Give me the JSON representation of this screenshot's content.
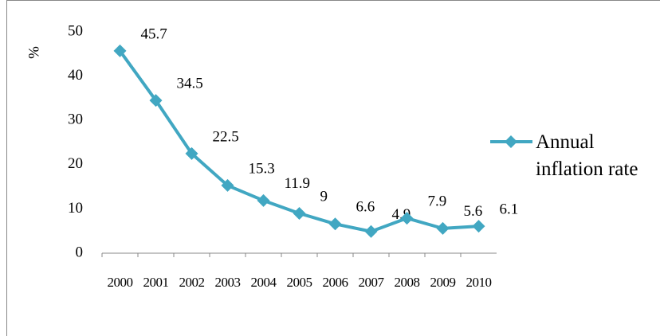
{
  "chart_data": {
    "type": "line",
    "y_label": "%",
    "categories": [
      "2000",
      "2001",
      "2002",
      "2003",
      "2004",
      "2005",
      "2006",
      "2007",
      "2008",
      "2009",
      "2010"
    ],
    "series": [
      {
        "name": "Annual inflation rate",
        "color": "#41a7c2",
        "values": [
          45.7,
          34.5,
          22.5,
          15.3,
          11.9,
          9,
          6.6,
          4.9,
          7.9,
          5.6,
          6.1
        ]
      }
    ],
    "ylim": [
      0,
      50
    ],
    "yticks": [
      0,
      10,
      20,
      30,
      40,
      50
    ],
    "grid": false,
    "legend": "right"
  }
}
